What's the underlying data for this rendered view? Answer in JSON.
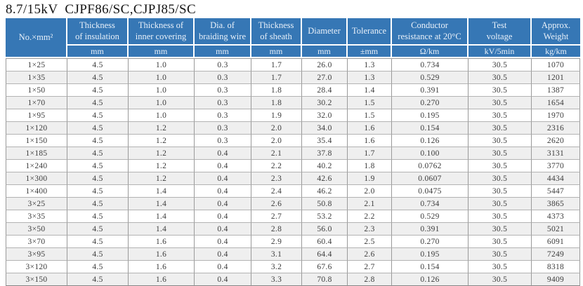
{
  "title": "8.7/15kV  CJPF86/SC,CJPJ85/SC",
  "colors": {
    "header_bg": "#3677b5",
    "header_text": "#e9f1fa",
    "row_stripe": "#efefef",
    "grid_line": "#9a9a9a",
    "body_text": "#3c3c3c"
  },
  "table": {
    "columns": [
      {
        "label": "No.×mm²",
        "unit": null
      },
      {
        "label": "Thickness\nof insulation",
        "unit": "mm"
      },
      {
        "label": "Thickness of\ninner covering",
        "unit": "mm"
      },
      {
        "label": "Dia. of\nbraiding wire",
        "unit": "mm"
      },
      {
        "label": "Thickness\nof sheath",
        "unit": "mm"
      },
      {
        "label": "Diameter",
        "unit": "mm"
      },
      {
        "label": "Tolerance",
        "unit": "±mm"
      },
      {
        "label": "Conductor\nresistance at 20°C",
        "unit": "Ω/km"
      },
      {
        "label": "Test\nvoltage",
        "unit": "kV/5min"
      },
      {
        "label": "Approx.\nWeight",
        "unit": "kg/km"
      }
    ],
    "rows": [
      [
        "1×25",
        "4.5",
        "1.0",
        "0.3",
        "1.7",
        "26.0",
        "1.3",
        "0.734",
        "30.5",
        "1070"
      ],
      [
        "1×35",
        "4.5",
        "1.0",
        "0.3",
        "1.7",
        "27.0",
        "1.3",
        "0.529",
        "30.5",
        "1201"
      ],
      [
        "1×50",
        "4.5",
        "1.0",
        "0.3",
        "1.8",
        "28.4",
        "1.4",
        "0.391",
        "30.5",
        "1387"
      ],
      [
        "1×70",
        "4.5",
        "1.0",
        "0.3",
        "1.8",
        "30.2",
        "1.5",
        "0.270",
        "30.5",
        "1654"
      ],
      [
        "1×95",
        "4.5",
        "1.0",
        "0.3",
        "1.9",
        "32.0",
        "1.5",
        "0.195",
        "30.5",
        "1970"
      ],
      [
        "1×120",
        "4.5",
        "1.2",
        "0.3",
        "2.0",
        "34.0",
        "1.6",
        "0.154",
        "30.5",
        "2316"
      ],
      [
        "1×150",
        "4.5",
        "1.2",
        "0.3",
        "2.0",
        "35.4",
        "1.6",
        "0.126",
        "30.5",
        "2620"
      ],
      [
        "1×185",
        "4.5",
        "1.2",
        "0.4",
        "2.1",
        "37.8",
        "1.7",
        "0.100",
        "30.5",
        "3131"
      ],
      [
        "1×240",
        "4.5",
        "1.2",
        "0.4",
        "2.2",
        "40.2",
        "1.8",
        "0.0762",
        "30.5",
        "3770"
      ],
      [
        "1×300",
        "4.5",
        "1.2",
        "0.4",
        "2.3",
        "42.6",
        "1.9",
        "0.0607",
        "30.5",
        "4434"
      ],
      [
        "1×400",
        "4.5",
        "1.4",
        "0.4",
        "2.4",
        "46.2",
        "2.0",
        "0.0475",
        "30.5",
        "5447"
      ],
      [
        "3×25",
        "4.5",
        "1.4",
        "0.4",
        "2.6",
        "50.8",
        "2.1",
        "0.734",
        "30.5",
        "3865"
      ],
      [
        "3×35",
        "4.5",
        "1.4",
        "0.4",
        "2.7",
        "53.2",
        "2.2",
        "0.529",
        "30.5",
        "4373"
      ],
      [
        "3×50",
        "4.5",
        "1.4",
        "0.4",
        "2.8",
        "56.0",
        "2.3",
        "0.391",
        "30.5",
        "5021"
      ],
      [
        "3×70",
        "4.5",
        "1.6",
        "0.4",
        "2.9",
        "60.4",
        "2.5",
        "0.270",
        "30.5",
        "6091"
      ],
      [
        "3×95",
        "4.5",
        "1.6",
        "0.4",
        "3.1",
        "64.4",
        "2.6",
        "0.195",
        "30.5",
        "7249"
      ],
      [
        "3×120",
        "4.5",
        "1.6",
        "0.4",
        "3.2",
        "67.6",
        "2.7",
        "0.154",
        "30.5",
        "8318"
      ],
      [
        "3×150",
        "4.5",
        "1.6",
        "0.4",
        "3.3",
        "70.8",
        "2.8",
        "0.126",
        "30.5",
        "9409"
      ]
    ]
  }
}
